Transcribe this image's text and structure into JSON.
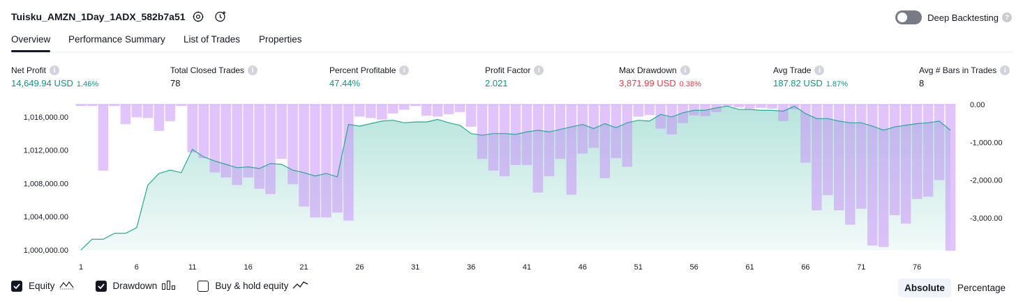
{
  "strategy": {
    "title": "Tuisku_AMZN_1Day_1ADX_582b7a51"
  },
  "deep_backtesting": {
    "label": "Deep Backtesting",
    "enabled": false
  },
  "tabs": [
    "Overview",
    "Performance Summary",
    "List of Trades",
    "Properties"
  ],
  "metrics": [
    {
      "label": "Net Profit",
      "value": "14,649.94 USD",
      "pct": "1.46%",
      "color": "#089981"
    },
    {
      "label": "Total Closed Trades",
      "value": "78",
      "pct": "",
      "color": "#131722"
    },
    {
      "label": "Percent Profitable",
      "value": "47.44%",
      "pct": "",
      "color": "#089981"
    },
    {
      "label": "Profit Factor",
      "value": "2.021",
      "pct": "",
      "color": "#089981"
    },
    {
      "label": "Max Drawdown",
      "value": "3,871.99 USD",
      "pct": "0.38%",
      "color": "#f23645"
    },
    {
      "label": "Avg Trade",
      "value": "187.82 USD",
      "pct": "1.87%",
      "color": "#089981"
    },
    {
      "label": "Avg # Bars in Trades",
      "value": "8",
      "pct": "",
      "color": "#131722"
    }
  ],
  "legend": [
    {
      "label": "Equity",
      "checked": true,
      "icon": "equity-line-icon"
    },
    {
      "label": "Drawdown",
      "checked": true,
      "icon": "drawdown-bars-icon"
    },
    {
      "label": "Buy & hold equity",
      "checked": false,
      "icon": "buy-hold-line-icon"
    }
  ],
  "modes": [
    {
      "label": "Absolute",
      "active": true
    },
    {
      "label": "Percentage",
      "active": false
    }
  ],
  "chart_data": {
    "type": "area",
    "x": [
      1,
      2,
      3,
      4,
      5,
      6,
      7,
      8,
      9,
      10,
      11,
      12,
      13,
      14,
      15,
      16,
      17,
      18,
      19,
      20,
      21,
      22,
      23,
      24,
      25,
      26,
      27,
      28,
      29,
      30,
      31,
      32,
      33,
      34,
      35,
      36,
      37,
      38,
      39,
      40,
      41,
      42,
      43,
      44,
      45,
      46,
      47,
      48,
      49,
      50,
      51,
      52,
      53,
      54,
      55,
      56,
      57,
      58,
      59,
      60,
      61,
      62,
      63,
      64,
      65,
      66,
      67,
      68,
      69,
      70,
      71,
      72,
      73,
      74,
      75,
      76,
      77,
      78,
      79
    ],
    "xticks": [
      1,
      6,
      11,
      16,
      21,
      26,
      31,
      36,
      41,
      46,
      51,
      56,
      61,
      66,
      71,
      76
    ],
    "series": [
      {
        "axis": "left",
        "ylim": [
          1000000,
          1017500
        ],
        "yticks": [
          1000000,
          1004000,
          1008000,
          1012000,
          1016000
        ],
        "ytick_labels": [
          "1,000,000.00",
          "1,004,000.00",
          "1,008,000.00",
          "1,012,000.00",
          "1,016,000.00"
        ],
        "color": "#22ab94",
        "values": [
          1000000,
          1001300,
          1001300,
          1002000,
          1002000,
          1002700,
          1007800,
          1009200,
          1009600,
          1009300,
          1012100,
          1011200,
          1010700,
          1010300,
          1009900,
          1010000,
          1009800,
          1010400,
          1010300,
          1009600,
          1009300,
          1008900,
          1009200,
          1008800,
          1015100,
          1014900,
          1015200,
          1015500,
          1015600,
          1015300,
          1015400,
          1015400,
          1015700,
          1015300,
          1015000,
          1014000,
          1013800,
          1014000,
          1014000,
          1013900,
          1014200,
          1014400,
          1014200,
          1014500,
          1014800,
          1015100,
          1014600,
          1015200,
          1014700,
          1015300,
          1015600,
          1015500,
          1016300,
          1016000,
          1016500,
          1016800,
          1016800,
          1017100,
          1017300,
          1016900,
          1016900,
          1016800,
          1016800,
          1016700,
          1017300,
          1016400,
          1015800,
          1015800,
          1015500,
          1015300,
          1015300,
          1014900,
          1014400,
          1014800,
          1015000,
          1015200,
          1015300,
          1015500,
          1014400
        ]
      },
      {
        "axis": "right",
        "ylim": [
          -3850,
          0
        ],
        "yticks": [
          0,
          -1000,
          -2000,
          -3000
        ],
        "ytick_labels": [
          "0.00",
          "-1,000.00",
          "-2,000.00",
          "-3,000.00"
        ],
        "color": "#ce93d8",
        "values": [
          -40,
          -40,
          -1750,
          -40,
          -520,
          -340,
          -360,
          -700,
          -440,
          -40,
          -1270,
          -1420,
          -1800,
          -1930,
          -2130,
          -1930,
          -2230,
          -2370,
          -1440,
          -2110,
          -2700,
          -2990,
          -2990,
          -2860,
          -3070,
          -320,
          -360,
          -400,
          -240,
          -140,
          -40,
          -300,
          -320,
          -260,
          -200,
          -590,
          -1440,
          -1750,
          -1900,
          -1600,
          -1600,
          -2330,
          -1900,
          -1440,
          -2390,
          -1300,
          -1150,
          -1950,
          -1420,
          -1650,
          -320,
          -280,
          -640,
          -790,
          -490,
          -290,
          -310,
          -200,
          -40,
          -80,
          -120,
          -90,
          -110,
          -440,
          -130,
          -1540,
          -2800,
          -2400,
          -2800,
          -3180,
          -2760,
          -3730,
          -3770,
          -2930,
          -3150,
          -2500,
          -2440,
          -2000,
          -3870
        ]
      }
    ]
  }
}
